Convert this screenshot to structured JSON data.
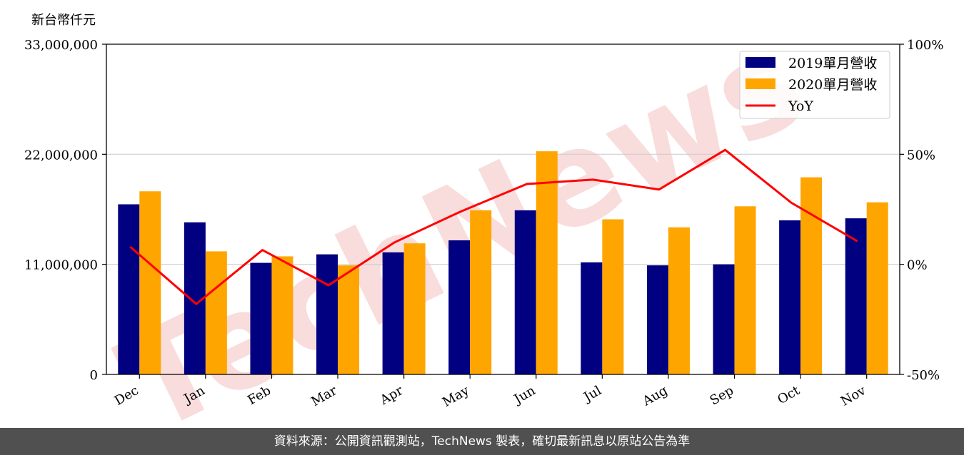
{
  "chart_data": {
    "type": "bar",
    "unit_label": "新台幣仟元",
    "categories": [
      "Dec",
      "Jan",
      "Feb",
      "Mar",
      "Apr",
      "May",
      "Jun",
      "Jul",
      "Aug",
      "Sep",
      "Oct",
      "Nov"
    ],
    "series": [
      {
        "name": "2019單月營收",
        "type": "bar",
        "color": "#000080",
        "values": [
          17000000,
          15200000,
          11150000,
          12000000,
          12200000,
          13400000,
          16400000,
          11200000,
          10900000,
          11000000,
          15400000,
          15600000
        ]
      },
      {
        "name": "2020單月營收",
        "type": "bar",
        "color": "#ffa500",
        "values": [
          18300000,
          12300000,
          11800000,
          10900000,
          13100000,
          16400000,
          22300000,
          15500000,
          14700000,
          16800000,
          19700000,
          17200000
        ]
      },
      {
        "name": "YoY",
        "type": "line",
        "axis": "right",
        "color": "#ff0000",
        "values": [
          8,
          -18,
          6.5,
          -9.5,
          10,
          24,
          36.5,
          38.5,
          34,
          52,
          28,
          10.5
        ]
      }
    ],
    "left_axis": {
      "ylim": [
        0,
        33000000
      ],
      "ticks": [
        0,
        11000000,
        22000000,
        33000000
      ],
      "tick_labels": [
        "0",
        "11,000,000",
        "22,000,000",
        "33,000,000"
      ]
    },
    "right_axis": {
      "ylim": [
        -50,
        100
      ],
      "ticks": [
        -50,
        0,
        50,
        100
      ],
      "tick_labels": [
        "-50%",
        "0%",
        "50%",
        "100%"
      ]
    },
    "grid": "horizontal",
    "legend_position": "top-right"
  },
  "watermark": {
    "text": "TechNews",
    "color": "#f5c0c0"
  },
  "footer": {
    "text": "資料來源：公開資訊觀測站，TechNews 製表，確切最新訊息以原站公告為準"
  }
}
